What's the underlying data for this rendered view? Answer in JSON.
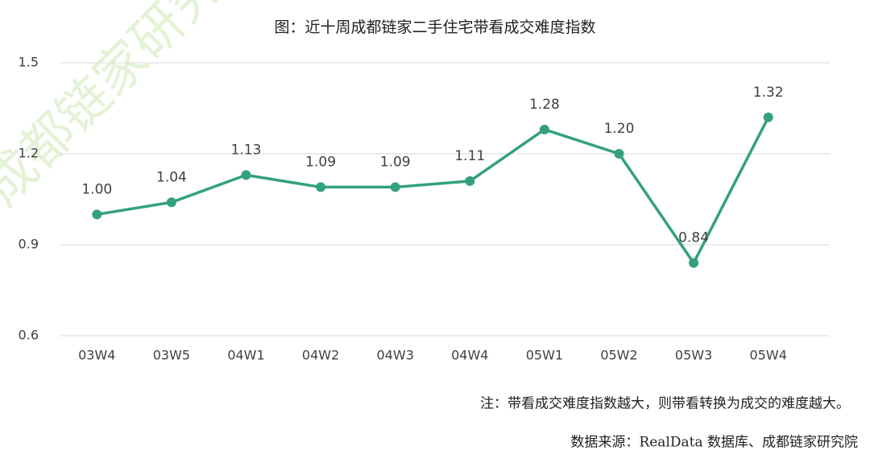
{
  "chart_data": {
    "type": "line",
    "title": "图：近十周成都链家二手住宅带看成交难度指数",
    "categories": [
      "03W4",
      "03W5",
      "04W1",
      "04W2",
      "04W3",
      "04W4",
      "05W1",
      "05W2",
      "05W3",
      "05W4"
    ],
    "series": [
      {
        "color": "#33a17e",
        "values": [
          1.0,
          1.04,
          1.13,
          1.09,
          1.09,
          1.11,
          1.28,
          1.2,
          0.84,
          1.32
        ],
        "value_labels": [
          "1.00",
          "1.04",
          "1.13",
          "1.09",
          "1.09",
          "1.11",
          "1.28",
          "1.20",
          "0.84",
          "1.32"
        ]
      }
    ],
    "ylim": [
      0.6,
      1.5
    ],
    "yticks": [
      0.6,
      0.9,
      1.2,
      1.5
    ],
    "grid": true,
    "note": "注：带看成交难度指数越大，则带看转换为成交的难度越大。",
    "source": "数据来源：RealData 数据库、成都链家研究院",
    "watermark": "成都链家研究院"
  }
}
